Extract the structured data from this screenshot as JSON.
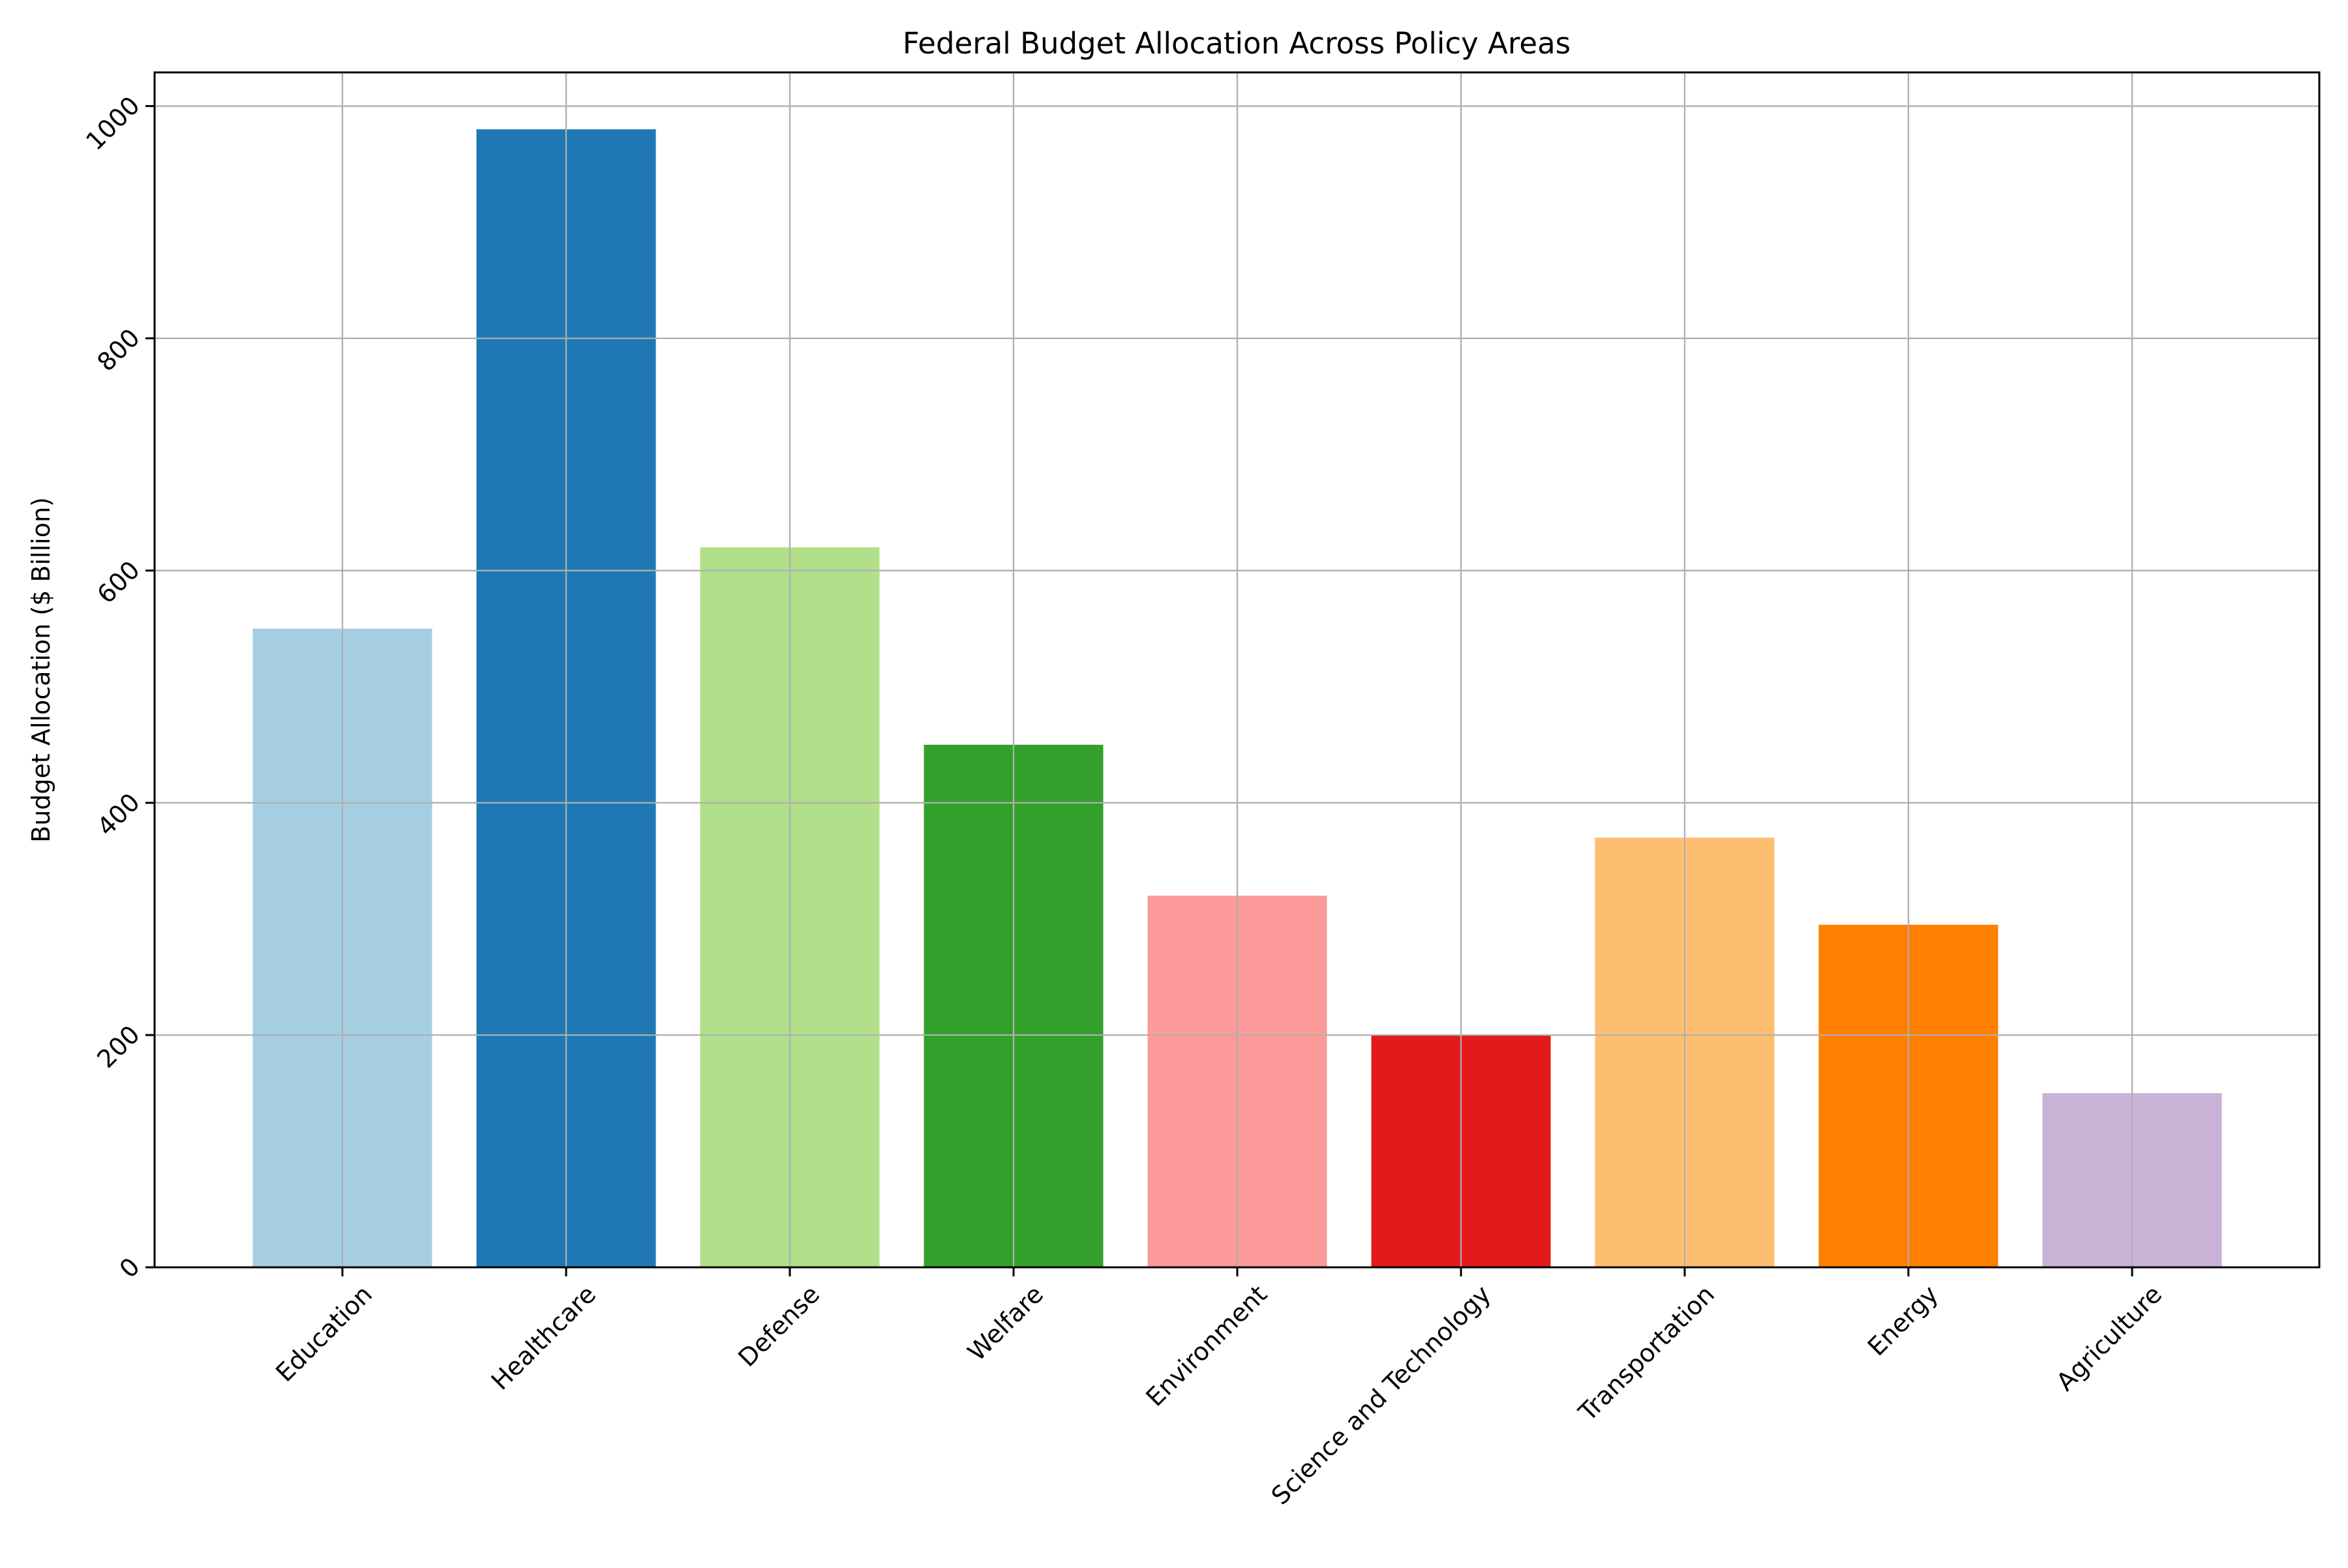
{
  "chart_data": {
    "type": "bar",
    "title": "Federal Budget Allocation Across Policy Areas",
    "xlabel": "",
    "ylabel": "Budget Allocation ($ Billion)",
    "categories": [
      "Education",
      "Healthcare",
      "Defense",
      "Welfare",
      "Environment",
      "Science and Technology",
      "Transportation",
      "Energy",
      "Agriculture"
    ],
    "values": [
      550,
      980,
      620,
      450,
      320,
      200,
      370,
      295,
      150
    ],
    "colors": [
      "#a6cee3",
      "#1f78b4",
      "#b2df8a",
      "#33a02c",
      "#fb9a99",
      "#e31a1c",
      "#fdbf6f",
      "#ff7f00",
      "#cab2d6"
    ],
    "ylim": [
      0,
      1029
    ],
    "yticks": [
      0,
      200,
      400,
      600,
      800,
      1000
    ],
    "grid": true,
    "legend": "none"
  }
}
